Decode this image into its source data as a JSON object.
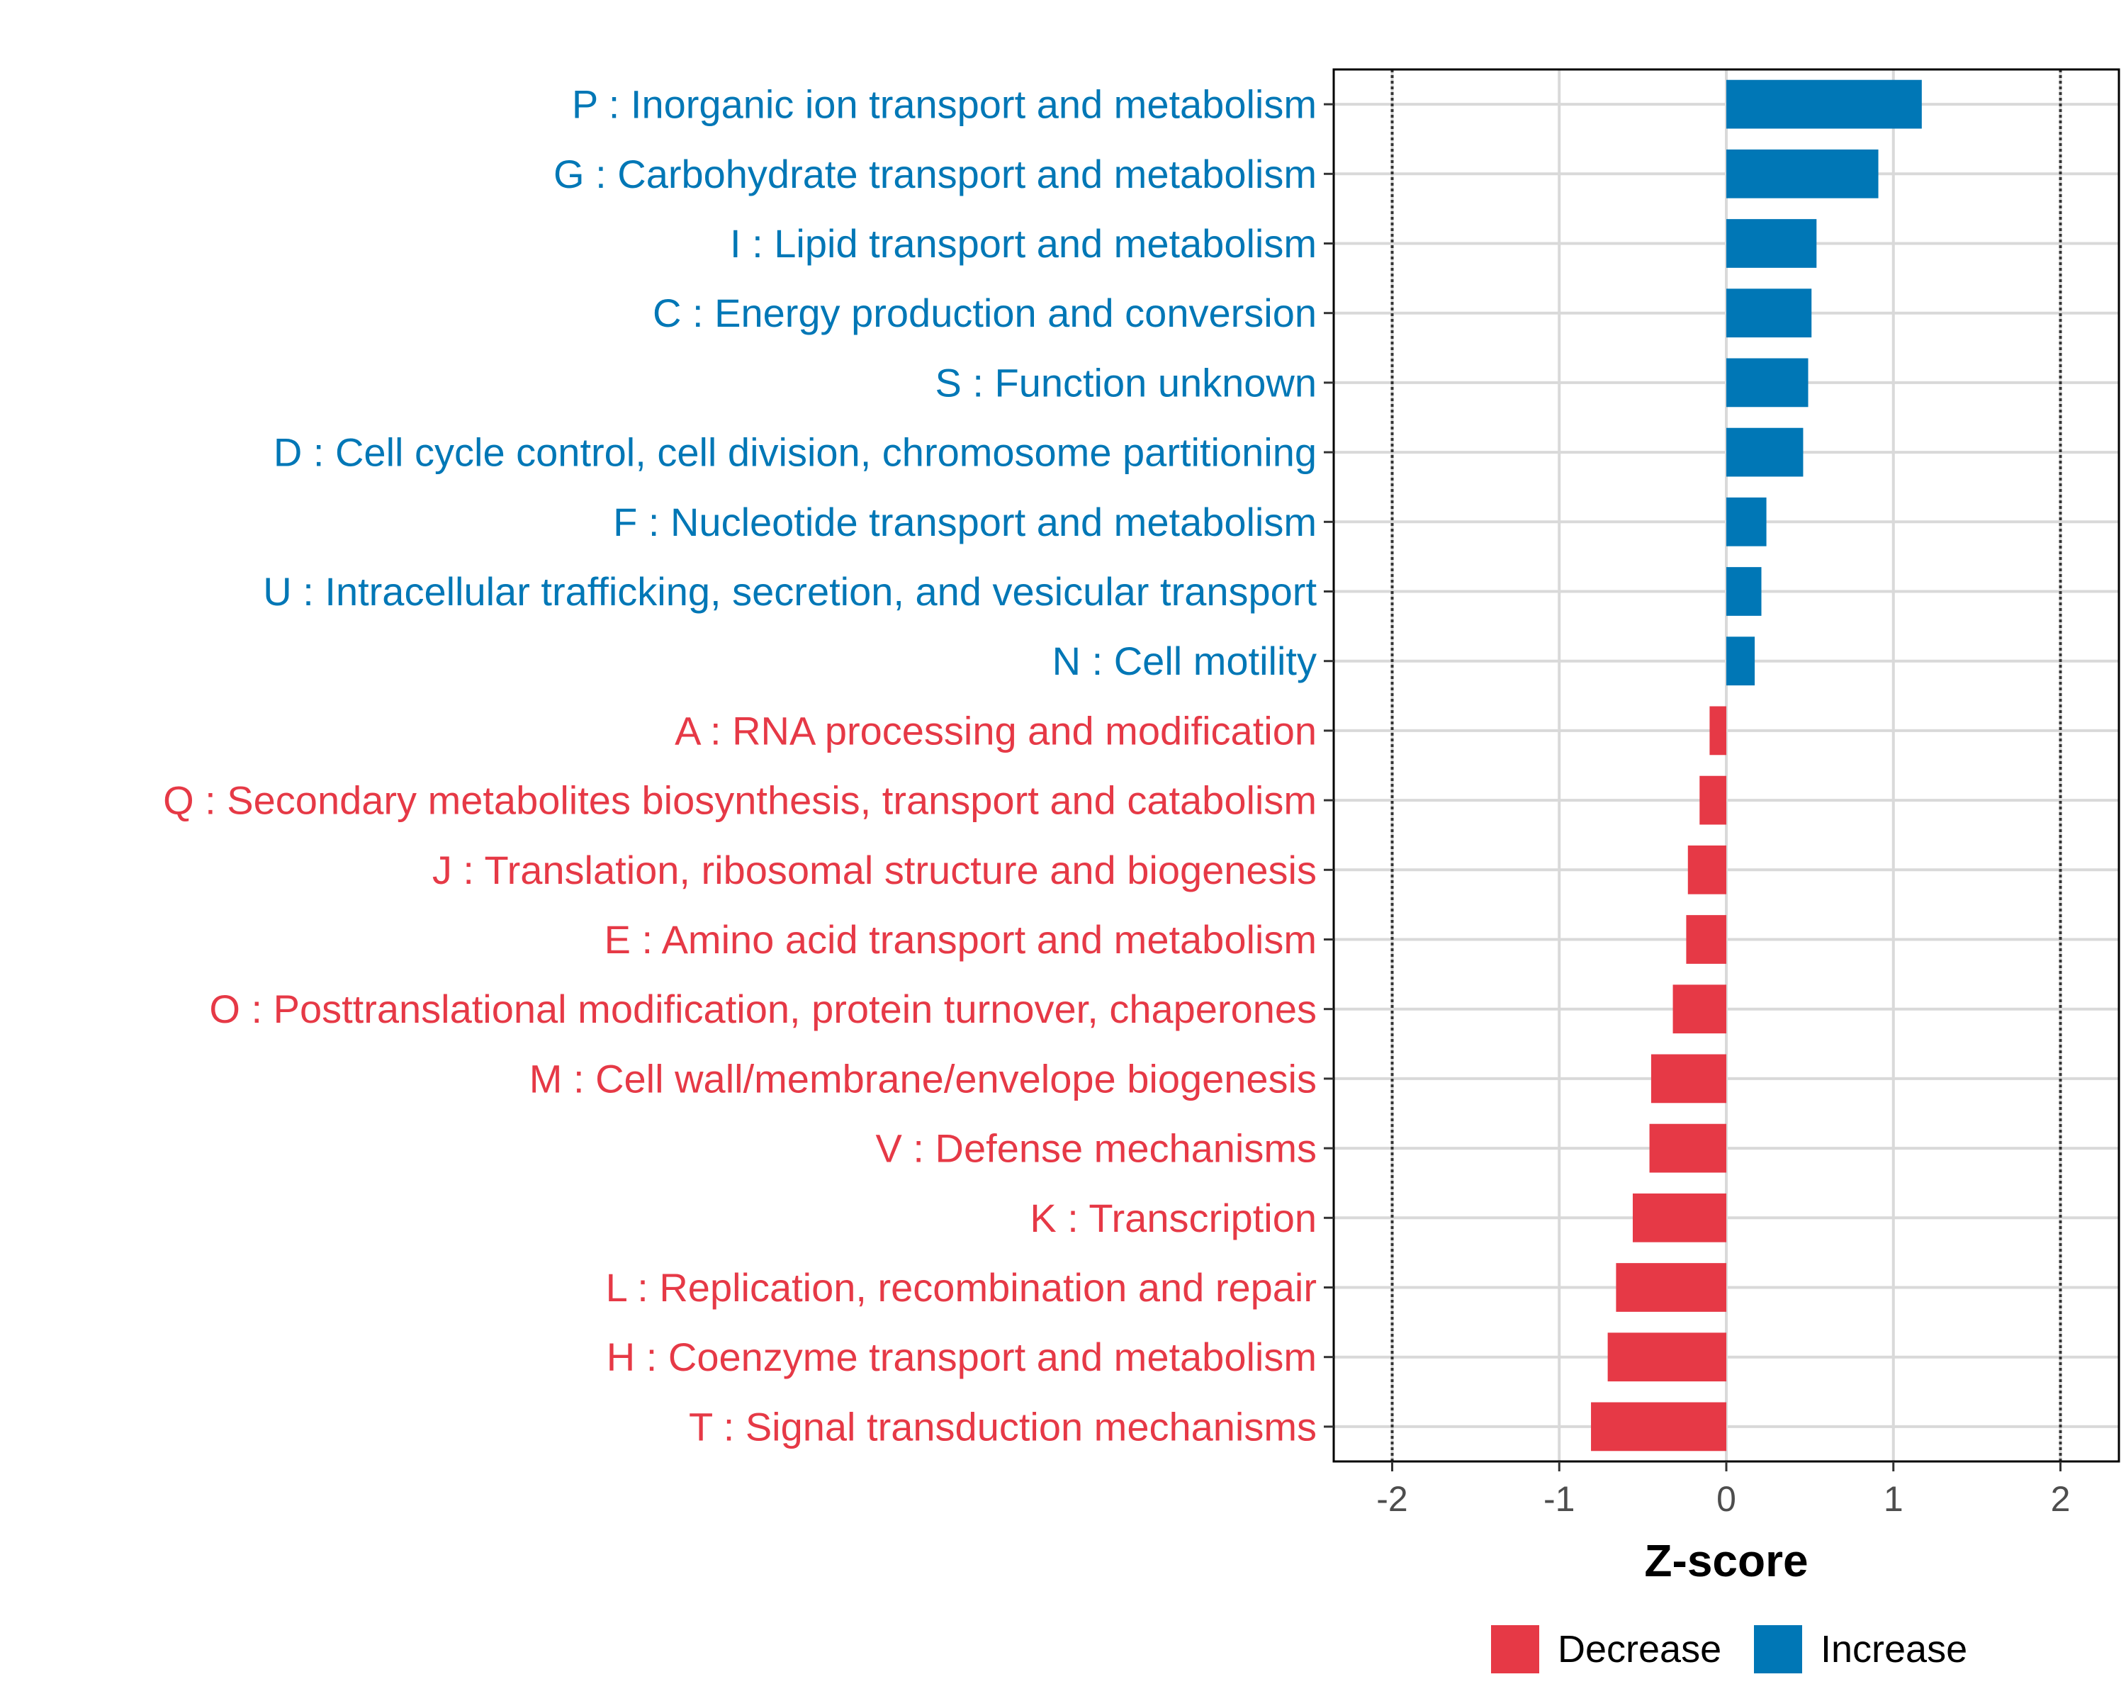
{
  "chart_data": {
    "type": "bar",
    "orientation": "horizontal",
    "title": "",
    "xlabel": "Z-score",
    "ylabel": "",
    "xlim": [
      -2.35,
      2.35
    ],
    "xticks": [
      -2,
      -1,
      0,
      1,
      2
    ],
    "xtick_labels": [
      "-2",
      "-1",
      "0",
      "1",
      "2"
    ],
    "reference_lines": [
      -2,
      2
    ],
    "grid": true,
    "legend_position": "bottom",
    "colors": {
      "Decrease": "#e63946",
      "Increase": "#0077b6"
    },
    "categories": [
      "P : Inorganic ion transport and metabolism",
      "G : Carbohydrate transport and metabolism",
      "I : Lipid transport and metabolism",
      "C : Energy production and conversion",
      "S : Function unknown",
      "D : Cell cycle control, cell division, chromosome partitioning",
      "F : Nucleotide transport and metabolism",
      "U : Intracellular trafficking, secretion, and vesicular transport",
      "N : Cell motility",
      "A : RNA processing and modification",
      "Q : Secondary metabolites biosynthesis, transport and catabolism",
      "J : Translation, ribosomal structure and biogenesis",
      "E : Amino acid transport and metabolism",
      "O : Posttranslational modification, protein turnover, chaperones",
      "M : Cell wall/membrane/envelope biogenesis",
      "V : Defense mechanisms",
      "K : Transcription",
      "L : Replication, recombination and repair",
      "H : Coenzyme transport and metabolism",
      "T : Signal transduction mechanisms"
    ],
    "values": [
      1.17,
      0.91,
      0.54,
      0.51,
      0.49,
      0.46,
      0.24,
      0.21,
      0.17,
      -0.1,
      -0.16,
      -0.23,
      -0.24,
      -0.32,
      -0.45,
      -0.46,
      -0.56,
      -0.66,
      -0.71,
      -0.81
    ],
    "groups": [
      "Increase",
      "Increase",
      "Increase",
      "Increase",
      "Increase",
      "Increase",
      "Increase",
      "Increase",
      "Increase",
      "Decrease",
      "Decrease",
      "Decrease",
      "Decrease",
      "Decrease",
      "Decrease",
      "Decrease",
      "Decrease",
      "Decrease",
      "Decrease",
      "Decrease"
    ],
    "legend": [
      "Decrease",
      "Increase"
    ]
  }
}
